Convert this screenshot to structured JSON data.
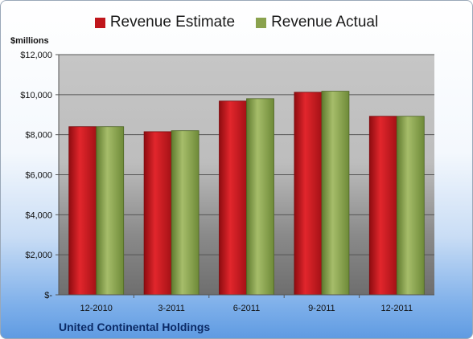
{
  "chart_data": {
    "type": "bar",
    "categories": [
      "12-2010",
      "3-2011",
      "6-2011",
      "9-2011",
      "12-2011"
    ],
    "series": [
      {
        "name": "Revenue Estimate",
        "color": "#c0161c",
        "values": [
          8400,
          8150,
          9680,
          10120,
          8920
        ]
      },
      {
        "name": "Revenue Actual",
        "color": "#8aa24e",
        "values": [
          8400,
          8200,
          9800,
          10170,
          8920
        ]
      }
    ],
    "ylabel": "$millions",
    "ylim": [
      0,
      12000
    ],
    "yticks": [
      0,
      2000,
      4000,
      6000,
      8000,
      10000,
      12000
    ],
    "ytick_labels": [
      "$-",
      "$2,000",
      "$4,000",
      "$6,000",
      "$8,000",
      "$10,000",
      "$12,000"
    ],
    "legend_position": "top",
    "grid": true
  },
  "company": "United Continental Holdings"
}
